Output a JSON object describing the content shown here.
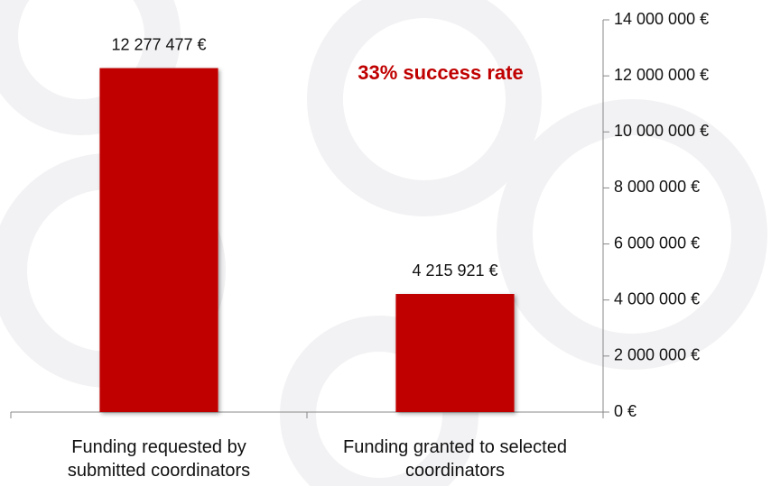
{
  "chart_data": {
    "type": "bar",
    "annotation": "33% success rate",
    "categories": [
      "Funding requested by submitted coordinators",
      "Funding granted to selected coordinators"
    ],
    "values": [
      12277477,
      4215921
    ],
    "value_labels": [
      "12 277 477 €",
      "4 215 921 €"
    ],
    "color": "#c00000",
    "ylim": [
      0,
      14000000
    ],
    "yticks": [
      {
        "value": 0,
        "label": "0 €"
      },
      {
        "value": 2000000,
        "label": "2 000 000 €"
      },
      {
        "value": 4000000,
        "label": "4 000 000 €"
      },
      {
        "value": 6000000,
        "label": "6 000 000 €"
      },
      {
        "value": 8000000,
        "label": "8 000 000 €"
      },
      {
        "value": 10000000,
        "label": "10 000 000 €"
      },
      {
        "value": 12000000,
        "label": "12 000 000 €"
      },
      {
        "value": 14000000,
        "label": "14 000 000 €"
      }
    ],
    "y_axis_side": "right"
  }
}
